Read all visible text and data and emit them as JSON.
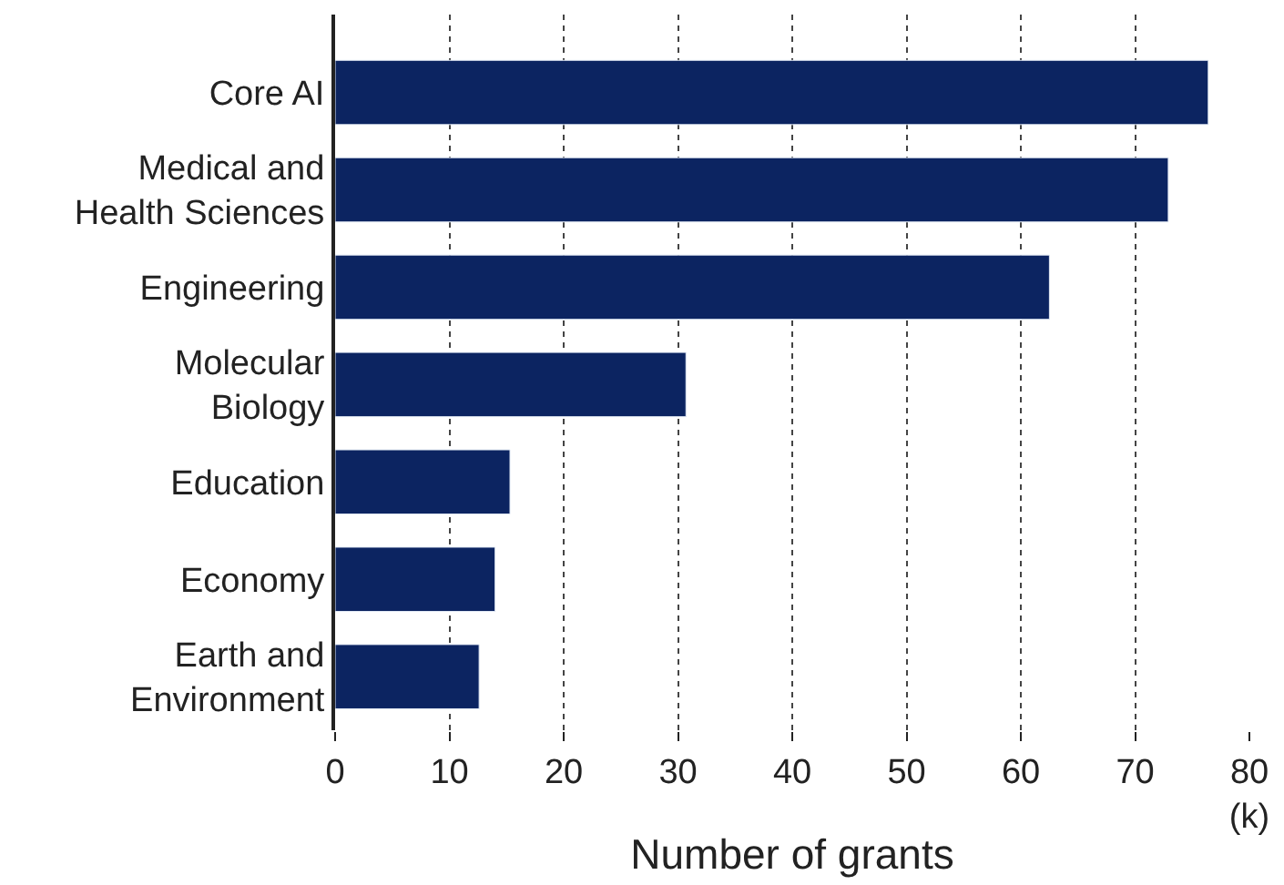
{
  "chart_data": {
    "type": "bar",
    "orientation": "horizontal",
    "xlabel": "Number of grants",
    "categories": [
      "Core AI",
      "Medical and\nHealth Sciences",
      "Engineering",
      "Molecular\nBiology",
      "Education",
      "Economy",
      "Earth and\nEnvironment"
    ],
    "values": [
      76.4,
      72.9,
      62.5,
      30.7,
      15.3,
      14.0,
      12.6
    ],
    "color": "#0c2461",
    "xlim": [
      0,
      80
    ],
    "xticks": [
      0,
      10,
      20,
      30,
      40,
      50,
      60,
      70,
      {
        "value": 80,
        "label": "80\n(k)"
      }
    ],
    "grid": "x",
    "line_style": "dotted"
  }
}
